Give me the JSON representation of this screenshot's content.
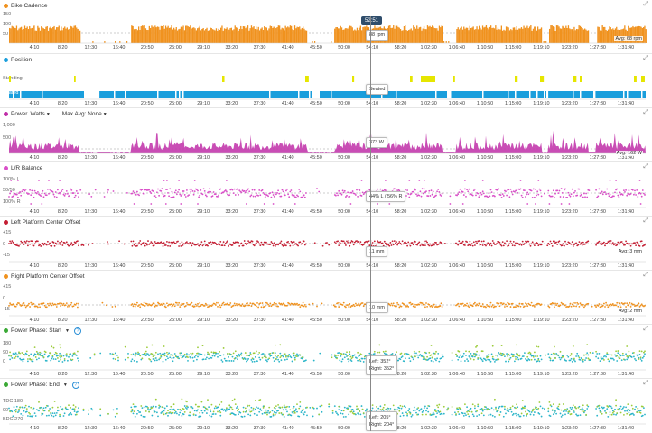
{
  "cursor_time": "52:51",
  "x_ticks": [
    "4:10",
    "8:20",
    "12:30",
    "16:40",
    "20:50",
    "25:00",
    "29:10",
    "33:20",
    "37:30",
    "41:40",
    "45:50",
    "50:00",
    "54:10",
    "58:20",
    "1:02:30",
    "1:06:40",
    "1:10:50",
    "1:15:00",
    "1:19:10",
    "1:23:20",
    "1:27:30",
    "1:31:40"
  ],
  "panels": [
    {
      "id": "bike-cadence",
      "title": "Bike Cadence",
      "color": "#f0921e",
      "y_labels": [
        "150",
        "100",
        "50"
      ],
      "avg": "Avg: 68 rpm",
      "tooltip": "88 rpm"
    },
    {
      "id": "position",
      "title": "Position",
      "color": "#1a9edc",
      "y_labels": [
        "Standing",
        "Seated"
      ],
      "tooltip": "Seated",
      "standing_color": "#e6e600"
    },
    {
      "id": "power",
      "title": "Power",
      "metric": "Watts",
      "max_avg_label": "Max Avg:",
      "max_avg_value": "None",
      "color": "#c02ea8",
      "y_labels": [
        "1,000",
        "500"
      ],
      "avg": "Avg: 162 W",
      "tooltip": "373 W"
    },
    {
      "id": "lr-balance",
      "title": "L/R Balance",
      "color": "#d94fc8",
      "y_labels": [
        "100% L",
        "50/50",
        "100% R"
      ],
      "tooltip": "44% L / 56% R"
    },
    {
      "id": "left-pco",
      "title": "Left Platform Center Offset",
      "color": "#c41e33",
      "y_labels": [
        "+15",
        "0",
        "-15"
      ],
      "avg": "Avg: 3 mm",
      "tooltip": "11 mm"
    },
    {
      "id": "right-pco",
      "title": "Right Platform Center Offset",
      "color": "#f0921e",
      "y_labels": [
        "+15",
        "0",
        "-15"
      ],
      "avg": "Avg: 2 mm",
      "tooltip": "10 mm"
    },
    {
      "id": "pp-start",
      "title": "Power Phase: Start",
      "color": "#3aa935",
      "y_labels": [
        "180",
        "90",
        "0"
      ],
      "tooltip_left": "Left: 352°",
      "tooltip_right": "Right: 352°"
    },
    {
      "id": "pp-end",
      "title": "Power Phase: End",
      "color": "#3aa935",
      "y_labels": [
        "TDC 180",
        "90",
        "BDC 270"
      ],
      "tooltip_left": "Left: 205°",
      "tooltip_right": "Right: 204°"
    }
  ],
  "legend_colors": {
    "left_dots": "#2bb5c9",
    "right_dots": "#9ccc3a"
  }
}
